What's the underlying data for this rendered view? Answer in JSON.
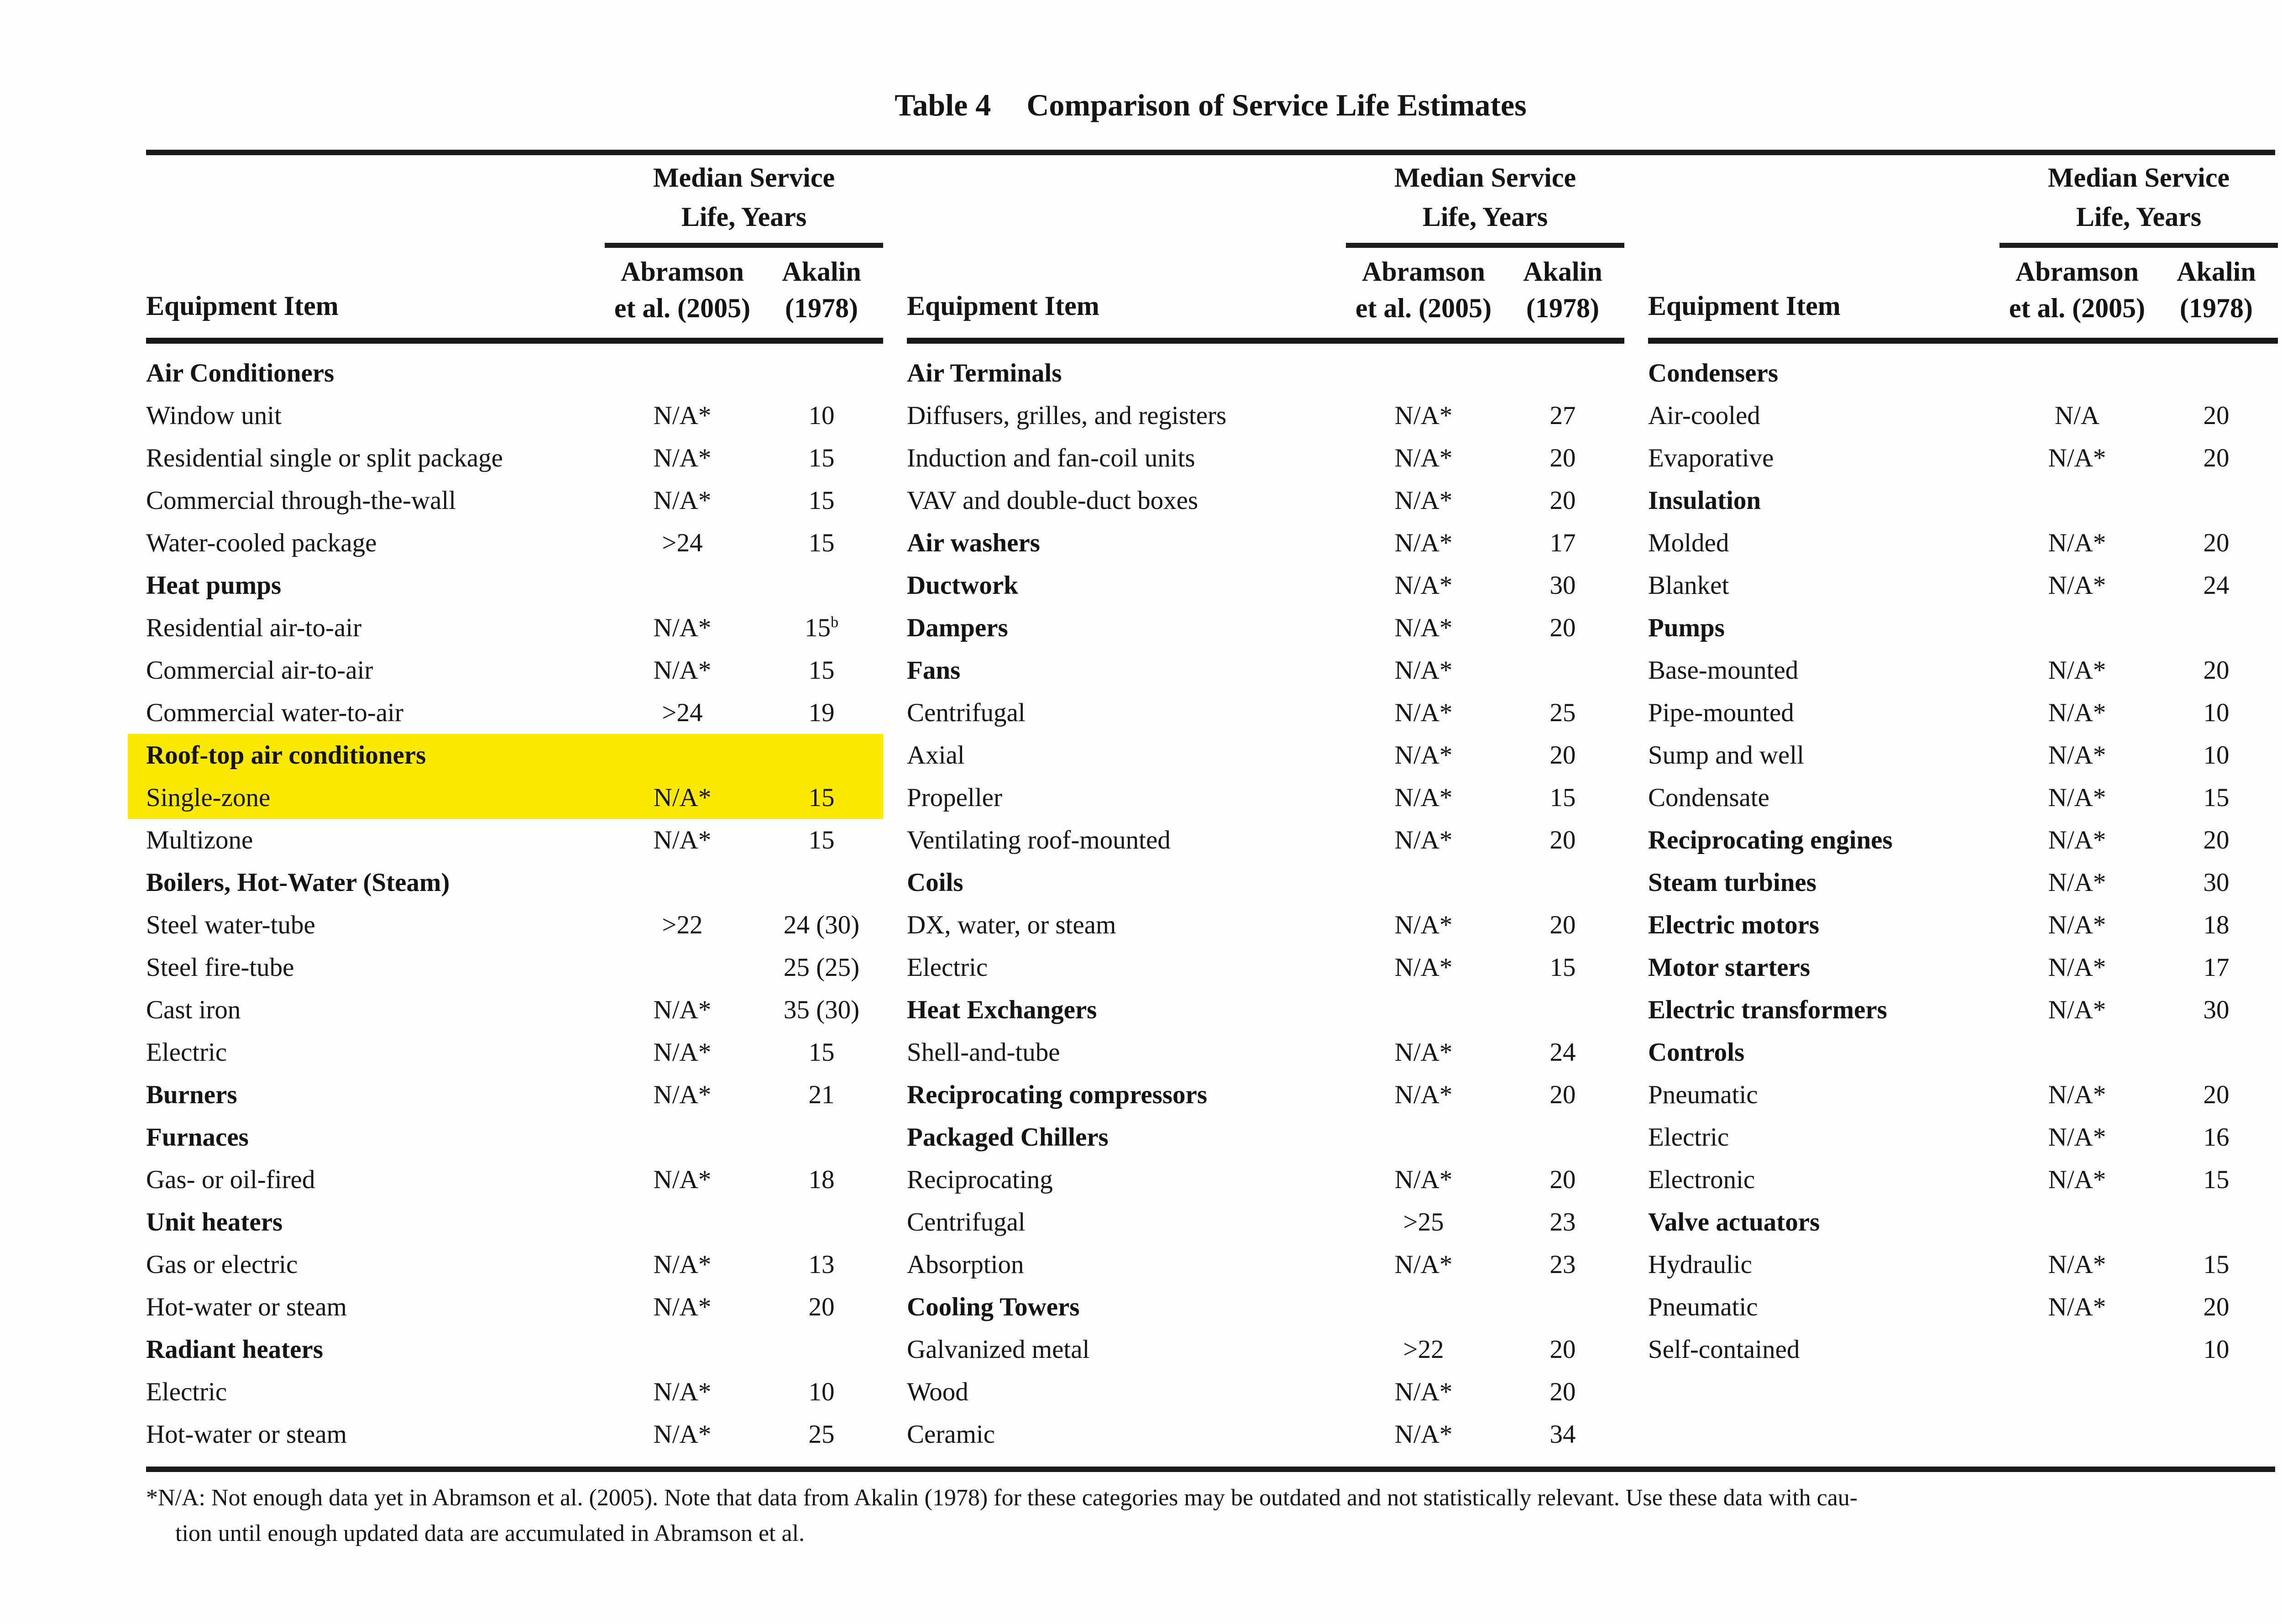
{
  "title": {
    "label": "Table 4",
    "text": "Comparison of Service Life Estimates"
  },
  "header": {
    "equipment_item": "Equipment Item",
    "median_service_line1": "Median Service",
    "median_service_line2": "Life, Years",
    "col_2005_line1": "Abramson",
    "col_2005_line2": "et al. (2005)",
    "col_1978_line1": "Akalin",
    "col_1978_line2": "(1978)"
  },
  "highlight_color": "#fbe900",
  "sections": [
    {
      "rows": [
        {
          "item": "Air Conditioners",
          "bold": true
        },
        {
          "item": "Window unit",
          "v2005": "N/A*",
          "v1978": "10"
        },
        {
          "item": "Residential single or split package",
          "v2005": "N/A*",
          "v1978": "15"
        },
        {
          "item": "Commercial through-the-wall",
          "v2005": "N/A*",
          "v1978": "15"
        },
        {
          "item": "Water-cooled package",
          "v2005": ">24",
          "v1978": "15"
        },
        {
          "item": "Heat pumps",
          "bold": true
        },
        {
          "item": "Residential air-to-air",
          "v2005": "N/A*",
          "v1978": "15",
          "sup1978": "b"
        },
        {
          "item": "Commercial air-to-air",
          "v2005": "N/A*",
          "v1978": "15"
        },
        {
          "item": "Commercial water-to-air",
          "v2005": ">24",
          "v1978": "19"
        },
        {
          "item": "Roof-top air conditioners",
          "bold": true,
          "highlight": true
        },
        {
          "item": "Single-zone",
          "v2005": "N/A*",
          "v1978": "15",
          "highlight": true
        },
        {
          "item": "Multizone",
          "v2005": "N/A*",
          "v1978": "15"
        },
        {
          "item": "Boilers, Hot-Water (Steam)",
          "bold": true
        },
        {
          "item": "Steel water-tube",
          "v2005": ">22",
          "v1978": "24 (30)"
        },
        {
          "item": "Steel fire-tube",
          "v1978": "25 (25)"
        },
        {
          "item": "Cast iron",
          "v2005": "N/A*",
          "v1978": "35 (30)"
        },
        {
          "item": "Electric",
          "v2005": "N/A*",
          "v1978": "15"
        },
        {
          "item": "Burners",
          "bold": true,
          "v2005": "N/A*",
          "v1978": "21"
        },
        {
          "item": "Furnaces",
          "bold": true
        },
        {
          "item": "Gas- or oil-fired",
          "v2005": "N/A*",
          "v1978": "18"
        },
        {
          "item": "Unit heaters",
          "bold": true
        },
        {
          "item": "Gas or electric",
          "v2005": "N/A*",
          "v1978": "13"
        },
        {
          "item": "Hot-water or steam",
          "v2005": "N/A*",
          "v1978": "20"
        },
        {
          "item": "Radiant heaters",
          "bold": true
        },
        {
          "item": "Electric",
          "v2005": "N/A*",
          "v1978": "10"
        },
        {
          "item": "Hot-water or steam",
          "v2005": "N/A*",
          "v1978": "25"
        }
      ]
    },
    {
      "rows": [
        {
          "item": "Air Terminals",
          "bold": true
        },
        {
          "item": "Diffusers, grilles, and registers",
          "v2005": "N/A*",
          "v1978": "27"
        },
        {
          "item": "Induction and fan-coil units",
          "v2005": "N/A*",
          "v1978": "20"
        },
        {
          "item": "VAV and double-duct boxes",
          "v2005": "N/A*",
          "v1978": "20"
        },
        {
          "item": "Air washers",
          "bold": true,
          "v2005": "N/A*",
          "v1978": "17"
        },
        {
          "item": "Ductwork",
          "bold": true,
          "v2005": "N/A*",
          "v1978": "30"
        },
        {
          "item": "Dampers",
          "bold": true,
          "v2005": "N/A*",
          "v1978": "20"
        },
        {
          "item": "Fans",
          "bold": true,
          "v2005": "N/A*"
        },
        {
          "item": "Centrifugal",
          "v2005": "N/A*",
          "v1978": "25"
        },
        {
          "item": "Axial",
          "v2005": "N/A*",
          "v1978": "20"
        },
        {
          "item": "Propeller",
          "v2005": "N/A*",
          "v1978": "15"
        },
        {
          "item": "Ventilating roof-mounted",
          "v2005": "N/A*",
          "v1978": "20"
        },
        {
          "item": "Coils",
          "bold": true
        },
        {
          "item": "DX, water, or steam",
          "v2005": "N/A*",
          "v1978": "20"
        },
        {
          "item": "Electric",
          "v2005": "N/A*",
          "v1978": "15"
        },
        {
          "item": "Heat Exchangers",
          "bold": true
        },
        {
          "item": "Shell-and-tube",
          "v2005": "N/A*",
          "v1978": "24"
        },
        {
          "item": "Reciprocating compressors",
          "bold": true,
          "v2005": "N/A*",
          "v1978": "20"
        },
        {
          "item": "Packaged Chillers",
          "bold": true
        },
        {
          "item": "Reciprocating",
          "v2005": "N/A*",
          "v1978": "20"
        },
        {
          "item": "Centrifugal",
          "v2005": ">25",
          "v1978": "23"
        },
        {
          "item": "Absorption",
          "v2005": "N/A*",
          "v1978": "23"
        },
        {
          "item": "Cooling Towers",
          "bold": true
        },
        {
          "item": "Galvanized metal",
          "v2005": ">22",
          "v1978": "20"
        },
        {
          "item": "Wood",
          "v2005": "N/A*",
          "v1978": "20"
        },
        {
          "item": "Ceramic",
          "v2005": "N/A*",
          "v1978": "34"
        }
      ]
    },
    {
      "rows": [
        {
          "item": "Condensers",
          "bold": true
        },
        {
          "item": "Air-cooled",
          "v2005": "N/A",
          "v1978": "20"
        },
        {
          "item": "Evaporative",
          "v2005": "N/A*",
          "v1978": "20"
        },
        {
          "item": "Insulation",
          "bold": true
        },
        {
          "item": "Molded",
          "v2005": "N/A*",
          "v1978": "20"
        },
        {
          "item": "Blanket",
          "v2005": "N/A*",
          "v1978": "24"
        },
        {
          "item": "Pumps",
          "bold": true
        },
        {
          "item": "Base-mounted",
          "v2005": "N/A*",
          "v1978": "20"
        },
        {
          "item": "Pipe-mounted",
          "v2005": "N/A*",
          "v1978": "10"
        },
        {
          "item": "Sump and well",
          "v2005": "N/A*",
          "v1978": "10"
        },
        {
          "item": "Condensate",
          "v2005": "N/A*",
          "v1978": "15"
        },
        {
          "item": "Reciprocating engines",
          "bold": true,
          "v2005": "N/A*",
          "v1978": "20"
        },
        {
          "item": "Steam turbines",
          "bold": true,
          "v2005": "N/A*",
          "v1978": "30"
        },
        {
          "item": "Electric motors",
          "bold": true,
          "v2005": "N/A*",
          "v1978": "18"
        },
        {
          "item": "Motor starters",
          "bold": true,
          "v2005": "N/A*",
          "v1978": "17"
        },
        {
          "item": "Electric transformers",
          "bold": true,
          "v2005": "N/A*",
          "v1978": "30"
        },
        {
          "item": "Controls",
          "bold": true
        },
        {
          "item": "Pneumatic",
          "v2005": "N/A*",
          "v1978": "20"
        },
        {
          "item": "Electric",
          "v2005": "N/A*",
          "v1978": "16"
        },
        {
          "item": "Electronic",
          "v2005": "N/A*",
          "v1978": "15"
        },
        {
          "item": "Valve actuators",
          "bold": true
        },
        {
          "item": "Hydraulic",
          "v2005": "N/A*",
          "v1978": "15"
        },
        {
          "item": "Pneumatic",
          "v2005": "N/A*",
          "v1978": "20"
        },
        {
          "item": "Self-contained",
          "v1978": "10"
        },
        {
          "item": ""
        },
        {
          "item": ""
        }
      ]
    }
  ],
  "footnote": {
    "line1": "*N/A: Not enough data yet in Abramson et al. (2005). Note that data from Akalin (1978) for these categories may be outdated and not statistically relevant. Use these data with cau-",
    "line2": "tion until enough updated data are accumulated in Abramson et al."
  }
}
